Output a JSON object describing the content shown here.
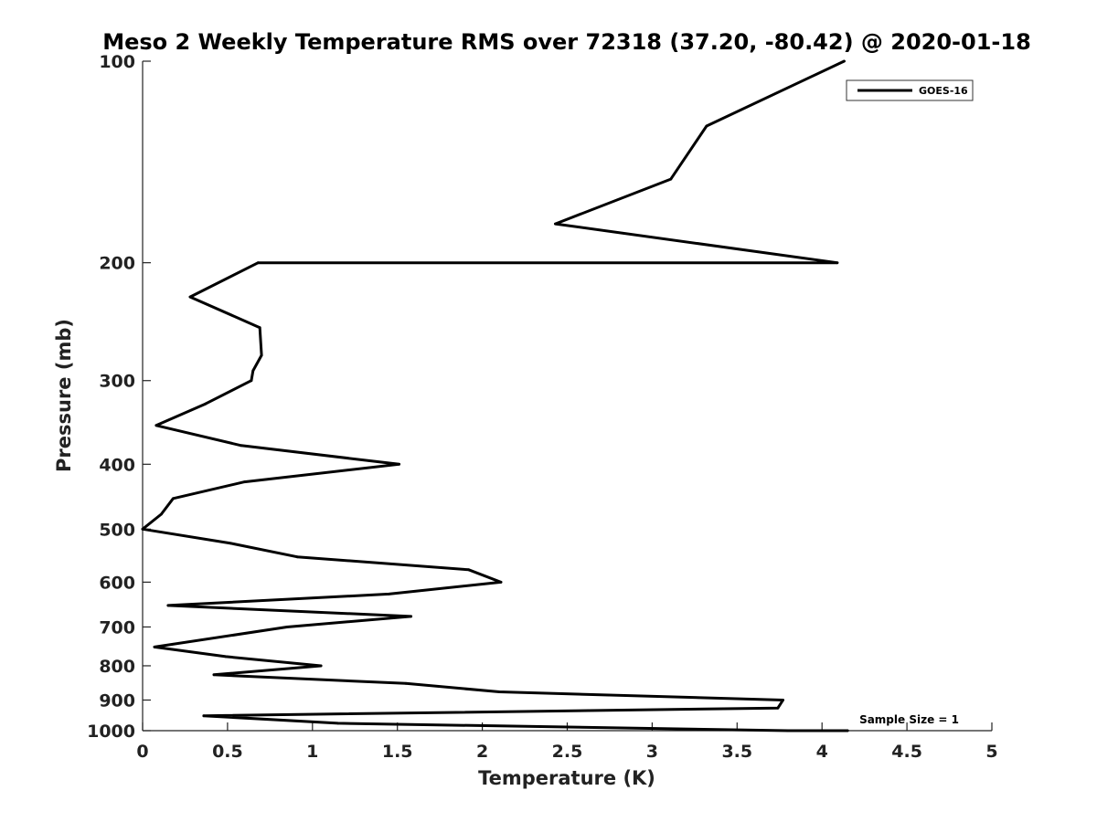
{
  "chart_data": {
    "type": "line",
    "title": "Meso 2 Weekly Temperature RMS over 72318 (37.20, -80.42) @ 2020-01-18",
    "xlabel": "Temperature (K)",
    "ylabel": "Pressure (mb)",
    "xlim": [
      0,
      5
    ],
    "ylim": [
      100,
      1000
    ],
    "y_scale": "log",
    "y_reversed": true,
    "x_ticks": [
      "0",
      "0.5",
      "1",
      "1.5",
      "2",
      "2.5",
      "3",
      "3.5",
      "4",
      "4.5",
      "5"
    ],
    "y_ticks": [
      "100",
      "200",
      "300",
      "400",
      "500",
      "600",
      "700",
      "800",
      "900",
      "1000"
    ],
    "grid": false,
    "legend_position": "top-right",
    "series": [
      {
        "name": "GOES-16",
        "color": "#000000",
        "points": [
          {
            "x": 4.13,
            "y": 100
          },
          {
            "x": 3.32,
            "y": 125
          },
          {
            "x": 3.11,
            "y": 150
          },
          {
            "x": 2.43,
            "y": 175
          },
          {
            "x": 4.09,
            "y": 200
          },
          {
            "x": 0.68,
            "y": 200
          },
          {
            "x": 0.28,
            "y": 225
          },
          {
            "x": 0.69,
            "y": 250
          },
          {
            "x": 0.7,
            "y": 275
          },
          {
            "x": 0.65,
            "y": 290
          },
          {
            "x": 0.64,
            "y": 300
          },
          {
            "x": 0.37,
            "y": 325
          },
          {
            "x": 0.08,
            "y": 350
          },
          {
            "x": 0.58,
            "y": 375
          },
          {
            "x": 1.51,
            "y": 400
          },
          {
            "x": 0.6,
            "y": 425
          },
          {
            "x": 0.18,
            "y": 450
          },
          {
            "x": 0.11,
            "y": 475
          },
          {
            "x": 0.0,
            "y": 500
          },
          {
            "x": 0.52,
            "y": 525
          },
          {
            "x": 0.91,
            "y": 550
          },
          {
            "x": 1.92,
            "y": 575
          },
          {
            "x": 2.11,
            "y": 600
          },
          {
            "x": 1.45,
            "y": 625
          },
          {
            "x": 0.15,
            "y": 650
          },
          {
            "x": 1.58,
            "y": 675
          },
          {
            "x": 0.85,
            "y": 700
          },
          {
            "x": 0.07,
            "y": 750
          },
          {
            "x": 0.49,
            "y": 775
          },
          {
            "x": 1.05,
            "y": 800
          },
          {
            "x": 0.42,
            "y": 825
          },
          {
            "x": 1.55,
            "y": 850
          },
          {
            "x": 2.1,
            "y": 875
          },
          {
            "x": 3.77,
            "y": 900
          },
          {
            "x": 3.74,
            "y": 925
          },
          {
            "x": 0.36,
            "y": 950
          },
          {
            "x": 1.15,
            "y": 975
          },
          {
            "x": 3.8,
            "y": 1000
          },
          {
            "x": 4.15,
            "y": 1000
          }
        ]
      }
    ],
    "annotations": [
      {
        "text": "Sample Size = 1",
        "x": 4.22,
        "y": 975
      }
    ]
  }
}
